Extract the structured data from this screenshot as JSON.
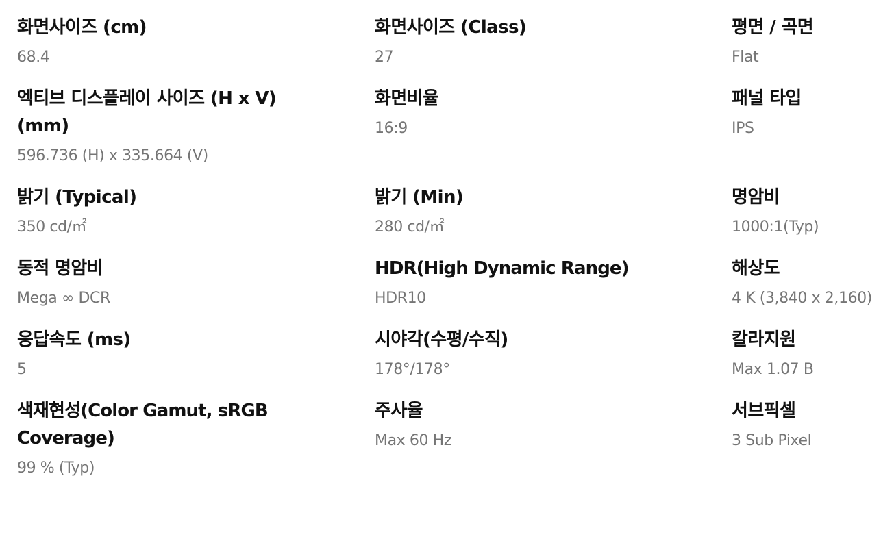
{
  "specs": [
    {
      "label": "화면사이즈 (cm)",
      "value": "68.4"
    },
    {
      "label": "화면사이즈 (Class)",
      "value": "27"
    },
    {
      "label": "평면 / 곡면",
      "value": "Flat"
    },
    {
      "label": "엑티브 디스플레이 사이즈 (H x V) (mm)",
      "value": "596.736 (H) x 335.664 (V)"
    },
    {
      "label": "화면비율",
      "value": "16:9"
    },
    {
      "label": "패널 타입",
      "value": "IPS"
    },
    {
      "label": "밝기 (Typical)",
      "value": "350 cd/㎡"
    },
    {
      "label": "밝기 (Min)",
      "value": "280 cd/㎡"
    },
    {
      "label": "명암비",
      "value": "1000:1(Typ)"
    },
    {
      "label": "동적 명암비",
      "value": "Mega ∞ DCR"
    },
    {
      "label": "HDR(High Dynamic Range)",
      "value": "HDR10"
    },
    {
      "label": "해상도",
      "value": "4 K (3,840 x 2,160)"
    },
    {
      "label": "응답속도 (ms)",
      "value": "5"
    },
    {
      "label": "시야각(수평/수직)",
      "value": "178°/178°"
    },
    {
      "label": "칼라지원",
      "value": "Max 1.07 B"
    },
    {
      "label": "색재현성(Color Gamut, sRGB Coverage)",
      "value": "99 % (Typ)"
    },
    {
      "label": "주사율",
      "value": "Max 60 Hz"
    },
    {
      "label": "서브픽셀",
      "value": "3 Sub Pixel"
    }
  ]
}
